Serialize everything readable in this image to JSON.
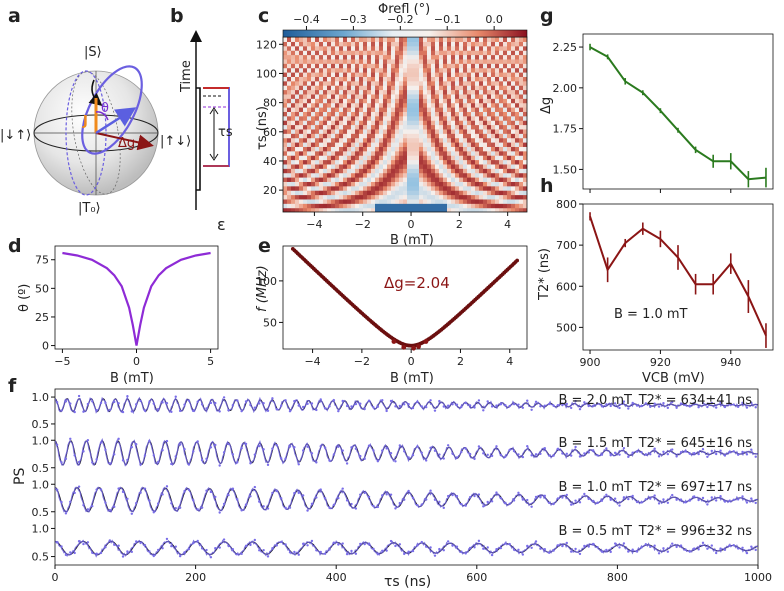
{
  "panels": {
    "a": "a",
    "b": "b",
    "c": "c",
    "d": "d",
    "e": "e",
    "f": "f",
    "g": "g",
    "h": "h"
  },
  "bloch": {
    "top": "|S⟩",
    "bottom": "|T₀⟩",
    "left": "|↓↑⟩",
    "right": "|↑↓⟩",
    "j": "J",
    "theta": "θ",
    "dg": "Δg"
  },
  "pulse": {
    "ylabel": "Time",
    "xlabel": "ε",
    "tau": "τs"
  },
  "colors": {
    "purple": "#8e2bd6",
    "dark_red": "#7a1010",
    "green": "#2a7a1e",
    "maroon": "#8b1515",
    "trace_blue": "#6b5fd8"
  },
  "chart_data": [
    {
      "id": "c",
      "type": "heatmap",
      "xlabel": "B (mT)",
      "ylabel": "τs (ns)",
      "colorbar_label": "Φrefl (°)",
      "xlim": [
        -5.3,
        4.8
      ],
      "ylim": [
        5,
        125
      ],
      "xticks": [
        "-4",
        "-2",
        "0",
        "2",
        "4"
      ],
      "yticks": [
        "20",
        "40",
        "60",
        "80",
        "100",
        "120"
      ],
      "colorbar_ticks": [
        "-0.4",
        "-0.3",
        "-0.2",
        "-0.1",
        "0.0"
      ],
      "colorbar_range": [
        -0.45,
        0.07
      ]
    },
    {
      "id": "d",
      "type": "line",
      "xlabel": "B (mT)",
      "ylabel": "θ (º)",
      "xlim": [
        -5.5,
        5.5
      ],
      "ylim": [
        -3,
        87
      ],
      "xticks": [
        "-5",
        "0",
        "5"
      ],
      "yticks": [
        "0",
        "25",
        "50",
        "75"
      ],
      "x": [
        -5,
        -4,
        -3,
        -2,
        -1.5,
        -1,
        -0.5,
        -0.25,
        0,
        0.25,
        0.5,
        1,
        1.5,
        2,
        3,
        4,
        5
      ],
      "y": [
        80.9,
        78.7,
        74.9,
        67.6,
        61.4,
        51.8,
        33.1,
        18.0,
        0,
        18.0,
        33.1,
        51.8,
        61.4,
        67.6,
        74.9,
        78.7,
        80.9
      ]
    },
    {
      "id": "e",
      "type": "scatter",
      "xlabel": "B (mT)",
      "ylabel": "f (MHz)",
      "annotation": "Δg=2.04",
      "xlim": [
        -5.2,
        4.7
      ],
      "ylim": [
        18,
        142
      ],
      "xticks": [
        "-4",
        "-2",
        "0",
        "2",
        "4"
      ],
      "yticks": [
        "50",
        "100"
      ],
      "gfactor_mhz_per_mT": 28.5,
      "j_mhz": 22.0,
      "x_start": -4.8,
      "x_end": 4.3
    },
    {
      "id": "g",
      "type": "line",
      "xlabel": "",
      "ylabel": "Δg",
      "xlim": [
        898,
        952
      ],
      "ylim": [
        1.38,
        2.33
      ],
      "yticks": [
        "1.50",
        "1.75",
        "2.00",
        "2.25"
      ],
      "x": [
        900,
        905,
        910,
        915,
        920,
        925,
        930,
        935,
        940,
        945,
        950
      ],
      "y": [
        2.25,
        2.19,
        2.04,
        1.97,
        1.86,
        1.74,
        1.62,
        1.55,
        1.55,
        1.44,
        1.45
      ],
      "err": [
        0.02,
        0.015,
        0.02,
        0.015,
        0.015,
        0.015,
        0.02,
        0.04,
        0.05,
        0.05,
        0.06
      ]
    },
    {
      "id": "h",
      "type": "line",
      "xlabel": "VCB (mV)",
      "ylabel": "T2* (ns)",
      "annotation": "B = 1.0 mT",
      "xlim": [
        898,
        952
      ],
      "ylim": [
        445,
        800
      ],
      "xticks": [
        "900",
        "920",
        "940"
      ],
      "yticks": [
        "500",
        "600",
        "700",
        "800"
      ],
      "x": [
        900,
        905,
        910,
        915,
        920,
        925,
        930,
        935,
        940,
        945,
        950
      ],
      "y": [
        770,
        640,
        705,
        740,
        715,
        670,
        605,
        605,
        655,
        575,
        480
      ],
      "err": [
        10,
        30,
        10,
        15,
        20,
        30,
        25,
        25,
        25,
        40,
        30
      ]
    },
    {
      "id": "f",
      "type": "line",
      "xlabel": "τs (ns)",
      "ylabel": "PS",
      "xlim": [
        0,
        1000
      ],
      "xticks": [
        "0",
        "200",
        "400",
        "600",
        "800",
        "1000"
      ],
      "yticks": [
        "1.0",
        "0.5"
      ],
      "series": [
        {
          "label": "B = 2.0 mT",
          "t2": "T2* = 634±41 ns",
          "freq_ghz": 0.0582,
          "t2_ns": 634,
          "amp": 0.12,
          "offset": 0.85
        },
        {
          "label": "B = 1.5 mT",
          "t2": "T2* = 645±16 ns",
          "freq_ghz": 0.0446,
          "t2_ns": 645,
          "amp": 0.22,
          "offset": 0.77
        },
        {
          "label": "B = 1.0 mT",
          "t2": "T2* = 697±17 ns",
          "freq_ghz": 0.0318,
          "t2_ns": 697,
          "amp": 0.22,
          "offset": 0.72
        },
        {
          "label": "B = 0.5 mT",
          "t2": "T2* = 996±32 ns",
          "freq_ghz": 0.0249,
          "t2_ns": 996,
          "amp": 0.12,
          "offset": 0.65
        }
      ]
    }
  ]
}
